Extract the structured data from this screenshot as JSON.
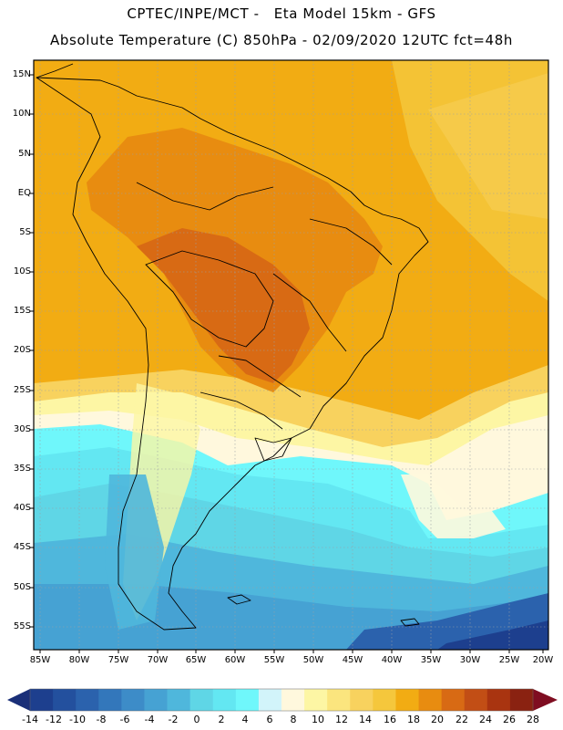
{
  "title": {
    "line1": "CPTEC/INPE/MCT -   Eta Model 15km - GFS",
    "line2": "Absolute Temperature (C) 850hPa - 02/09/2020 12UTC fct=48h"
  },
  "map": {
    "lat_labels": [
      "15N",
      "10N",
      "5N",
      "EQ",
      "5S",
      "10S",
      "15S",
      "20S",
      "25S",
      "30S",
      "35S",
      "40S",
      "45S",
      "50S",
      "55S"
    ],
    "lon_labels": [
      "85W",
      "80W",
      "75W",
      "70W",
      "65W",
      "60W",
      "55W",
      "50W",
      "45W",
      "40W",
      "35W",
      "30W",
      "25W",
      "20W"
    ],
    "temperature_bands": [
      {
        "range": "0 to 2 C",
        "color": "#5fd6e6"
      },
      {
        "range": "2 to 4 C",
        "color": "#63e7f2"
      },
      {
        "range": "6 to 8 C",
        "color": "#fff8dd"
      },
      {
        "range": "14 to 16 C",
        "color": "#f5c73c"
      },
      {
        "range": "16 to 18 C",
        "color": "#f2ac13"
      },
      {
        "range": "18 to 20 C",
        "color": "#e88c10"
      },
      {
        "range": "20 to 22 C",
        "color": "#d86a14"
      }
    ]
  },
  "colorbar": {
    "labels": [
      "-14",
      "-12",
      "-10",
      "-8",
      "-6",
      "-4",
      "-2",
      "0",
      "2",
      "4",
      "6",
      "8",
      "10",
      "12",
      "14",
      "16",
      "18",
      "20",
      "22",
      "24",
      "26",
      "28"
    ],
    "colors": [
      "#1d3f8e",
      "#23509e",
      "#2b62ad",
      "#3377bb",
      "#3d8cc8",
      "#46a2d3",
      "#4fb7dc",
      "#5fd6e6",
      "#63e7f2",
      "#6ff7fb",
      "#d2f4fa",
      "#fff8dd",
      "#fdf6a4",
      "#fbe57e",
      "#f8d25e",
      "#f5c73c",
      "#f2ac13",
      "#e88c10",
      "#d86a14",
      "#c24e15",
      "#a93410",
      "#8a2211"
    ],
    "low_arrow_color": "#1a2f78",
    "high_arrow_color": "#7f0d21"
  }
}
